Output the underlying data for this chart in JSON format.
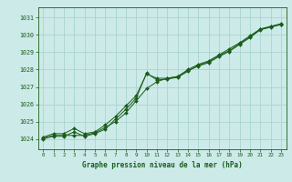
{
  "title": "Graphe pression niveau de la mer (hPa)",
  "bg_color": "#cceae8",
  "grid_color": "#aad4d0",
  "line_color": "#1a5c1a",
  "marker_color": "#1a5c1a",
  "xlim": [
    -0.5,
    23.5
  ],
  "ylim": [
    1023.4,
    1031.6
  ],
  "yticks": [
    1024,
    1025,
    1026,
    1027,
    1028,
    1029,
    1030,
    1031
  ],
  "xticks": [
    0,
    1,
    2,
    3,
    4,
    5,
    6,
    7,
    8,
    9,
    10,
    11,
    12,
    13,
    14,
    15,
    16,
    17,
    18,
    19,
    20,
    21,
    22,
    23
  ],
  "series1_x": [
    0,
    1,
    2,
    3,
    4,
    5,
    6,
    7,
    8,
    9,
    10,
    11,
    12,
    13,
    14,
    15,
    16,
    17,
    18,
    19,
    20,
    21,
    22,
    23
  ],
  "series1_y": [
    1024.1,
    1024.3,
    1024.3,
    1024.6,
    1024.3,
    1024.4,
    1024.8,
    1025.3,
    1025.9,
    1026.5,
    1027.75,
    1027.5,
    1027.5,
    1027.6,
    1028.0,
    1028.3,
    1028.5,
    1028.85,
    1029.2,
    1029.55,
    1029.95,
    1030.35,
    1030.5,
    1030.65
  ],
  "series2_x": [
    0,
    1,
    2,
    3,
    4,
    5,
    6,
    7,
    8,
    9,
    10,
    11,
    12,
    13,
    14,
    15,
    16,
    17,
    18,
    19,
    20,
    21,
    22,
    23
  ],
  "series2_y": [
    1024.05,
    1024.2,
    1024.2,
    1024.2,
    1024.2,
    1024.35,
    1024.65,
    1025.0,
    1025.5,
    1026.2,
    1026.9,
    1027.3,
    1027.5,
    1027.6,
    1027.95,
    1028.2,
    1028.4,
    1028.75,
    1029.05,
    1029.45,
    1029.85,
    1030.3,
    1030.45,
    1030.6
  ],
  "series3_x": [
    0,
    1,
    2,
    3,
    4,
    5,
    6,
    7,
    8,
    9,
    10,
    11,
    12,
    13,
    14,
    15,
    16,
    17,
    18,
    19,
    20,
    21,
    22,
    23
  ],
  "series3_y": [
    1024.0,
    1024.15,
    1024.15,
    1024.4,
    1024.15,
    1024.3,
    1024.55,
    1025.15,
    1025.7,
    1026.35,
    1027.8,
    1027.4,
    1027.45,
    1027.55,
    1027.9,
    1028.25,
    1028.45,
    1028.8,
    1029.1,
    1029.5,
    1029.9,
    1030.32,
    1030.47,
    1030.62
  ]
}
